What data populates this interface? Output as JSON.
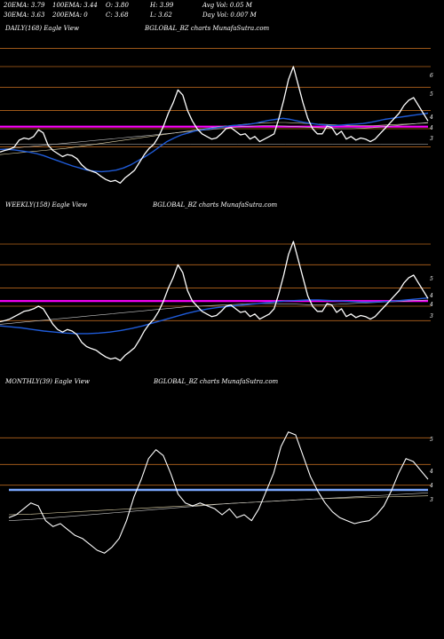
{
  "header": {
    "row1": [
      "20EMA: 3.79",
      "100EMA: 3.44",
      "O: 3.80",
      "H: 3.99",
      "Avg Vol: 0.05 M"
    ],
    "row2": [
      "30EMA: 3.63",
      "200EMA: 0",
      "C: 3.68",
      "L: 3.62",
      "Day Vol: 0.007 M"
    ]
  },
  "colors": {
    "background": "#000000",
    "price_line": "#ffffff",
    "ema_blue": "#1f5bd8",
    "ema_magenta": "#ff00ff",
    "level_line": "#b5651d",
    "ema_thin": "#c8c8c8",
    "ema_cream": "#e8dcb0",
    "monthly_band": "#7aa7ff"
  },
  "chart_data": [
    {
      "type": "line",
      "panel_label": "DAILY(168) Eagle  View",
      "watermark": "BGLOBAL_BZ charts MunafaSutra.com",
      "y_ticks": [
        "6",
        "5",
        "4",
        "4",
        "3"
      ],
      "series": [
        {
          "values": [
            2.95,
            2.98,
            3.0,
            3.05,
            3.18,
            3.22,
            3.2,
            3.25,
            3.38,
            3.32,
            3.08,
            2.98,
            2.92,
            2.86,
            2.9,
            2.88,
            2.82,
            2.7,
            2.62,
            2.58,
            2.55,
            2.48,
            2.42,
            2.38,
            2.4,
            2.35,
            2.45,
            2.52,
            2.6,
            2.75,
            2.9,
            3.02,
            3.1,
            3.25,
            3.45,
            3.7,
            3.9,
            4.15,
            4.05,
            3.75,
            3.55,
            3.4,
            3.3,
            3.25,
            3.2,
            3.22,
            3.3,
            3.4,
            3.42,
            3.35,
            3.28,
            3.3,
            3.2,
            3.25,
            3.15,
            3.2,
            3.25,
            3.3,
            3.6,
            3.95,
            4.35,
            4.6,
            4.25,
            3.9,
            3.6,
            3.4,
            3.3,
            3.3,
            3.45,
            3.42,
            3.28,
            3.35,
            3.2,
            3.25,
            3.18,
            3.22,
            3.2,
            3.15,
            3.2,
            3.3,
            3.4,
            3.5,
            3.6,
            3.7,
            3.85,
            3.95,
            4.0,
            3.85,
            3.7,
            3.55
          ]
        },
        {
          "values": [
            3.0,
            3.0,
            2.99,
            2.97,
            2.95,
            2.92,
            2.88,
            2.83,
            2.78,
            2.73,
            2.68,
            2.64,
            2.6,
            2.58,
            2.57,
            2.58,
            2.6,
            2.64,
            2.7,
            2.78,
            2.86,
            2.95,
            3.05,
            3.15,
            3.22,
            3.28,
            3.32,
            3.36,
            3.38,
            3.4,
            3.42,
            3.44,
            3.46,
            3.47,
            3.48,
            3.5,
            3.53,
            3.56,
            3.58,
            3.6,
            3.58,
            3.55,
            3.52,
            3.5,
            3.48,
            3.47,
            3.46,
            3.47,
            3.48,
            3.49,
            3.5,
            3.52,
            3.55,
            3.58,
            3.6,
            3.62,
            3.64,
            3.66,
            3.68,
            3.7
          ]
        },
        {
          "values": [
            3.0,
            3.02,
            3.04,
            3.06,
            3.08,
            3.1,
            3.12,
            3.14,
            3.16,
            3.18,
            3.2,
            3.22,
            3.24,
            3.26,
            3.28,
            3.3,
            3.32,
            3.34,
            3.36,
            3.38,
            3.4,
            3.42,
            3.44,
            3.45,
            3.46,
            3.46,
            3.45,
            3.44,
            3.43,
            3.42,
            3.41,
            3.4,
            3.4,
            3.41,
            3.42,
            3.44,
            3.46,
            3.48,
            3.5,
            3.52
          ]
        },
        {
          "values": [
            2.9,
            2.92,
            2.94,
            2.96,
            2.98,
            3.0,
            3.02,
            3.05,
            3.08,
            3.11,
            3.14,
            3.17,
            3.2,
            3.23,
            3.26,
            3.29,
            3.32,
            3.35,
            3.38,
            3.41,
            3.44,
            3.46,
            3.48,
            3.5,
            3.51,
            3.52,
            3.52,
            3.51,
            3.5,
            3.49,
            3.48,
            3.47,
            3.46,
            3.46,
            3.46,
            3.47,
            3.48,
            3.49,
            3.5,
            3.51
          ]
        },
        {
          "values": [
            3.44,
            3.44,
            3.44,
            3.44,
            3.44,
            3.44,
            3.44,
            3.44,
            3.44,
            3.44
          ]
        },
        {
          "values": [
            3.1,
            3.1,
            3.1,
            3.1,
            3.1,
            3.1,
            3.1,
            3.1,
            3.1,
            3.1
          ]
        }
      ],
      "ylim": [
        2.2,
        5.2
      ],
      "levels": [
        4.95,
        4.6,
        4.2,
        3.75,
        3.4,
        3.05
      ]
    },
    {
      "type": "line",
      "panel_label": "WEEKLY(158) Eagle  View",
      "watermark": "BGLOBAL_BZ charts MunafaSutra.com",
      "y_ticks": [
        "5",
        "4",
        "4",
        "3"
      ],
      "series": [
        {
          "values": [
            3.1,
            3.12,
            3.15,
            3.2,
            3.25,
            3.3,
            3.32,
            3.35,
            3.4,
            3.35,
            3.2,
            3.05,
            2.95,
            2.9,
            2.95,
            2.92,
            2.85,
            2.7,
            2.62,
            2.58,
            2.55,
            2.48,
            2.42,
            2.38,
            2.4,
            2.35,
            2.45,
            2.52,
            2.6,
            2.75,
            2.92,
            3.05,
            3.15,
            3.3,
            3.5,
            3.75,
            3.95,
            4.2,
            4.05,
            3.7,
            3.5,
            3.4,
            3.3,
            3.25,
            3.2,
            3.22,
            3.3,
            3.4,
            3.42,
            3.35,
            3.28,
            3.3,
            3.2,
            3.25,
            3.15,
            3.2,
            3.25,
            3.35,
            3.65,
            4.0,
            4.4,
            4.65,
            4.3,
            3.95,
            3.6,
            3.4,
            3.3,
            3.3,
            3.45,
            3.42,
            3.28,
            3.35,
            3.2,
            3.25,
            3.18,
            3.22,
            3.2,
            3.15,
            3.2,
            3.3,
            3.4,
            3.5,
            3.6,
            3.7,
            3.85,
            3.95,
            4.0,
            3.85,
            3.7,
            3.55
          ]
        },
        {
          "values": [
            3.02,
            3.0,
            2.98,
            2.95,
            2.92,
            2.9,
            2.88,
            2.87,
            2.87,
            2.88,
            2.9,
            2.93,
            2.97,
            3.02,
            3.08,
            3.14,
            3.2,
            3.26,
            3.31,
            3.35,
            3.38,
            3.4,
            3.42,
            3.44,
            3.46,
            3.48,
            3.5,
            3.51,
            3.52,
            3.52,
            3.51,
            3.5,
            3.49,
            3.48,
            3.48,
            3.49,
            3.5,
            3.52,
            3.54,
            3.56
          ]
        },
        {
          "values": [
            3.05,
            3.07,
            3.09,
            3.11,
            3.13,
            3.15,
            3.17,
            3.19,
            3.21,
            3.23,
            3.25,
            3.27,
            3.29,
            3.31,
            3.33,
            3.35,
            3.37,
            3.39,
            3.4,
            3.41,
            3.42,
            3.43,
            3.44,
            3.45,
            3.45,
            3.45,
            3.44,
            3.44,
            3.43,
            3.43,
            3.43,
            3.44,
            3.45,
            3.46,
            3.47,
            3.48,
            3.49,
            3.5,
            3.51,
            3.52
          ]
        },
        {
          "values": [
            3.5,
            3.5,
            3.5,
            3.5,
            3.5,
            3.5,
            3.5,
            3.5,
            3.5,
            3.5
          ]
        }
      ],
      "ylim": [
        2.2,
        5.2
      ],
      "levels": [
        4.6,
        4.2,
        3.75,
        3.4,
        3.12
      ]
    },
    {
      "type": "line",
      "panel_label": "MONTHLY(39) Eagle  View",
      "watermark": "BGLOBAL_BZ charts MunafaSutra.com",
      "y_ticks": [
        "5",
        "4",
        "4",
        "3"
      ],
      "series": [
        {
          "values": [
            3.05,
            3.1,
            3.2,
            3.3,
            3.25,
            3.0,
            2.9,
            2.95,
            2.85,
            2.75,
            2.7,
            2.6,
            2.5,
            2.45,
            2.55,
            2.7,
            3.0,
            3.4,
            3.7,
            4.05,
            4.2,
            4.1,
            3.8,
            3.45,
            3.3,
            3.25,
            3.3,
            3.25,
            3.2,
            3.1,
            3.2,
            3.05,
            3.1,
            3.0,
            3.2,
            3.5,
            3.8,
            4.25,
            4.5,
            4.45,
            4.1,
            3.75,
            3.5,
            3.3,
            3.15,
            3.05,
            3.0,
            2.95,
            2.98,
            3.0,
            3.1,
            3.25,
            3.5,
            3.8,
            4.05,
            4.0,
            3.85,
            3.7
          ]
        },
        {
          "values": [
            3.0,
            3.02,
            3.05,
            3.08,
            3.11,
            3.14,
            3.17,
            3.2,
            3.23,
            3.26,
            3.29,
            3.31,
            3.33,
            3.35,
            3.37,
            3.39,
            3.41,
            3.43,
            3.45,
            3.47
          ]
        },
        {
          "values": [
            3.1,
            3.11,
            3.13,
            3.15,
            3.17,
            3.19,
            3.21,
            3.23,
            3.25,
            3.27,
            3.29,
            3.31,
            3.33,
            3.35,
            3.37,
            3.38,
            3.39,
            3.4,
            3.41,
            3.42
          ]
        },
        {
          "values": [
            3.52,
            3.52,
            3.52,
            3.52,
            3.52,
            3.52,
            3.52,
            3.52,
            3.52,
            3.52
          ]
        }
      ],
      "ylim": [
        2.2,
        5.2
      ],
      "levels": [
        4.4,
        3.95,
        3.6
      ]
    }
  ]
}
